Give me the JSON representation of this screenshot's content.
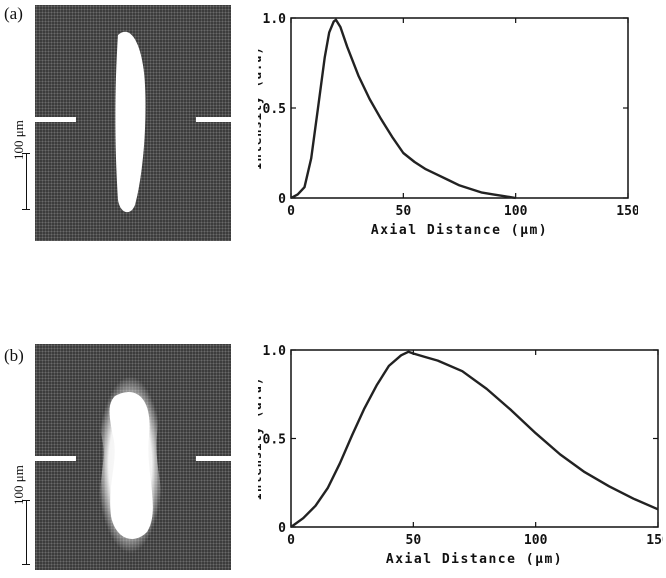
{
  "panels": [
    {
      "label": "(a)",
      "scale_label": "100 μm"
    },
    {
      "label": "(b)",
      "scale_label": "100 μm"
    }
  ],
  "chart_data": [
    {
      "type": "line",
      "xlabel": "Axial Distance (μm)",
      "ylabel": "Intensity (a.u)",
      "xlim": [
        0,
        150
      ],
      "ylim": [
        0,
        1.0
      ],
      "xticks": [
        "0",
        "50",
        "100",
        "150"
      ],
      "yticks": [
        "0",
        "0.5",
        "1.0"
      ],
      "series": [
        {
          "x": [
            0,
            3,
            6,
            9,
            12,
            15,
            17,
            19,
            20,
            22,
            25,
            30,
            35,
            40,
            45,
            50,
            55,
            60,
            65,
            70,
            75,
            80,
            85,
            90,
            95,
            100
          ],
          "values": [
            0.0,
            0.02,
            0.06,
            0.22,
            0.5,
            0.78,
            0.92,
            0.98,
            0.99,
            0.95,
            0.84,
            0.68,
            0.55,
            0.44,
            0.34,
            0.25,
            0.2,
            0.16,
            0.13,
            0.1,
            0.07,
            0.05,
            0.03,
            0.02,
            0.01,
            0.0
          ]
        }
      ]
    },
    {
      "type": "line",
      "xlabel": "Axial Distance (μm)",
      "ylabel": "Intensity (a.u)",
      "xlim": [
        0,
        150
      ],
      "ylim": [
        0,
        1.0
      ],
      "xticks": [
        "0",
        "50",
        "100",
        "150"
      ],
      "yticks": [
        "0",
        "0.5",
        "1.0"
      ],
      "series": [
        {
          "x": [
            0,
            5,
            10,
            15,
            20,
            25,
            30,
            35,
            40,
            45,
            48,
            50,
            55,
            60,
            70,
            80,
            90,
            100,
            110,
            120,
            130,
            140,
            150
          ],
          "values": [
            0.0,
            0.05,
            0.12,
            0.22,
            0.36,
            0.52,
            0.67,
            0.8,
            0.91,
            0.97,
            0.99,
            0.98,
            0.96,
            0.94,
            0.88,
            0.78,
            0.66,
            0.53,
            0.41,
            0.31,
            0.23,
            0.16,
            0.1
          ]
        }
      ]
    }
  ]
}
